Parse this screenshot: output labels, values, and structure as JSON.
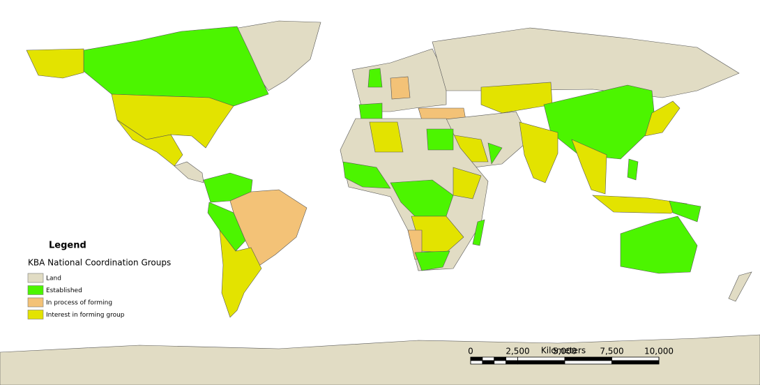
{
  "legend": {
    "title": "Legend",
    "subtitle": "KBA National Coordination Groups",
    "items": [
      {
        "label": "Land",
        "color": "#e1dcc4"
      },
      {
        "label": "Established",
        "color": "#4cf500"
      },
      {
        "label": "In process of forming",
        "color": "#f3c277"
      },
      {
        "label": "Interest in forming group",
        "color": "#e3e300"
      }
    ]
  },
  "scale_bar": {
    "title": "Kilometers",
    "ticks": [
      0,
      {
        "value": 2500,
        "label": "2,500"
      },
      {
        "value": 5000,
        "label": "5,000"
      },
      {
        "value": 7500,
        "label": "7,500"
      },
      {
        "value": 10000,
        "label": "10,000"
      }
    ]
  }
}
